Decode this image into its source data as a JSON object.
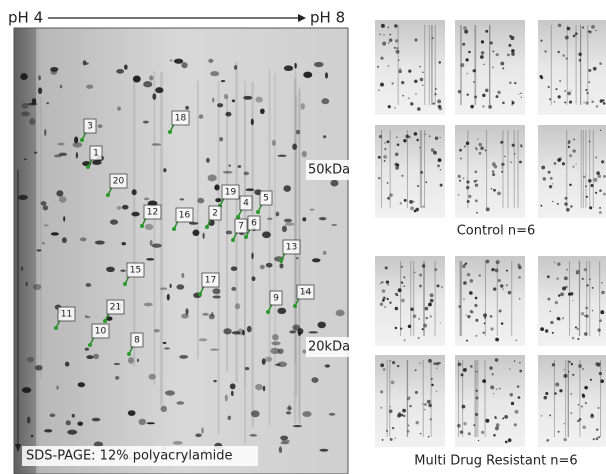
{
  "header": {
    "left_label": "pH 4",
    "right_label": "pH 8"
  },
  "gel": {
    "marker_50": "50kDa",
    "marker_20": "20kDa",
    "method": "SDS-PAGE: 12% polyacrylamide",
    "spots": [
      {
        "label": "3"
      },
      {
        "label": "18"
      },
      {
        "label": "1"
      },
      {
        "label": "20"
      },
      {
        "label": "19"
      },
      {
        "label": "5"
      },
      {
        "label": "4"
      },
      {
        "label": "12"
      },
      {
        "label": "16"
      },
      {
        "label": "2"
      },
      {
        "label": "7"
      },
      {
        "label": "6"
      },
      {
        "label": "13"
      },
      {
        "label": "15"
      },
      {
        "label": "17"
      },
      {
        "label": "14"
      },
      {
        "label": "9"
      },
      {
        "label": "11"
      },
      {
        "label": "21"
      },
      {
        "label": "10"
      },
      {
        "label": "8"
      }
    ]
  },
  "groups": [
    {
      "label": "Control n=6"
    },
    {
      "label": "Multi Drug Resistant n=6"
    }
  ]
}
